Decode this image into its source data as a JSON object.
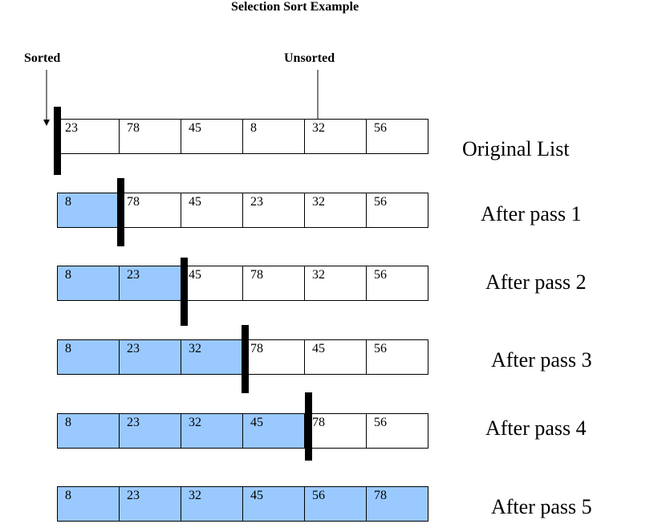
{
  "title": "Selection Sort Example",
  "labels": {
    "sorted": "Sorted",
    "unsorted": "Unsorted"
  },
  "colors": {
    "sorted_fill": "#99c9ff"
  },
  "rows": [
    {
      "caption": "Original List",
      "values": [
        "23",
        "78",
        "45",
        "8",
        "32",
        "56"
      ],
      "sorted_count": 0
    },
    {
      "caption": "After pass 1",
      "values": [
        "8",
        "78",
        "45",
        "23",
        "32",
        "56"
      ],
      "sorted_count": 1
    },
    {
      "caption": "After pass 2",
      "values": [
        "8",
        "23",
        "45",
        "78",
        "32",
        "56"
      ],
      "sorted_count": 2
    },
    {
      "caption": "After pass 3",
      "values": [
        "8",
        "23",
        "32",
        "78",
        "45",
        "56"
      ],
      "sorted_count": 3
    },
    {
      "caption": "After pass 4",
      "values": [
        "8",
        "23",
        "32",
        "45",
        "78",
        "56"
      ],
      "sorted_count": 4
    },
    {
      "caption": "After pass 5",
      "values": [
        "8",
        "23",
        "32",
        "45",
        "56",
        "78"
      ],
      "sorted_count": 6
    }
  ]
}
